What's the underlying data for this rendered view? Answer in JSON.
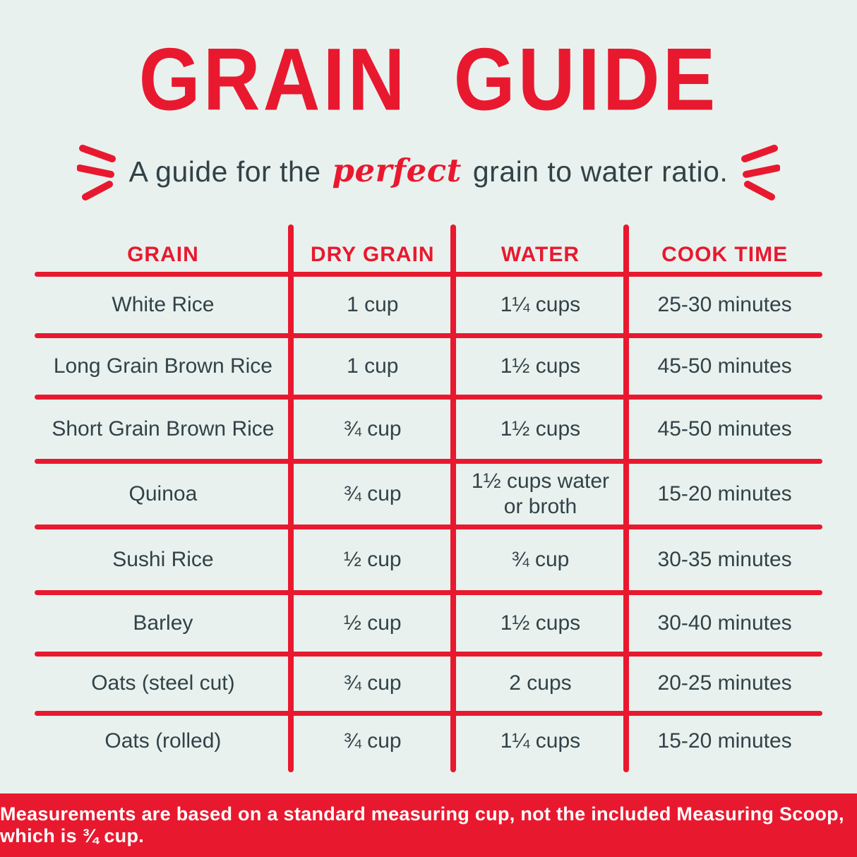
{
  "title": "GRAIN GUIDE",
  "subtitle": {
    "prefix": "A guide for the ",
    "highlight": "perfect",
    "suffix": " grain to water ratio."
  },
  "table": {
    "headers": [
      "GRAIN",
      "DRY GRAIN",
      "WATER",
      "COOK TIME"
    ],
    "rows": [
      [
        "White Rice",
        "1 cup",
        "1¼ cups",
        "25-30 minutes"
      ],
      [
        "Long Grain Brown Rice",
        "1 cup",
        "1½ cups",
        "45-50 minutes"
      ],
      [
        "Short Grain Brown Rice",
        "¾ cup",
        "1½ cups",
        "45-50 minutes"
      ],
      [
        "Quinoa",
        "¾ cup",
        "1½ cups water or broth",
        "15-20 minutes"
      ],
      [
        "Sushi Rice",
        "½ cup",
        "¾ cup",
        "30-35 minutes"
      ],
      [
        "Barley",
        "½ cup",
        "1½ cups",
        "30-40 minutes"
      ],
      [
        "Oats (steel cut)",
        "¾ cup",
        "2 cups",
        "20-25 minutes"
      ],
      [
        "Oats (rolled)",
        "¾ cup",
        "1¼ cups",
        "15-20 minutes"
      ]
    ]
  },
  "footer": {
    "note": "Measurements are based on a standard measuring cup, not the included Measuring Scoop, which is ¾ cup."
  },
  "colors": {
    "accent_red": "#e8192f",
    "background": "#e9f1ee",
    "text_dark": "#314247",
    "footer_text": "#ffffff"
  }
}
